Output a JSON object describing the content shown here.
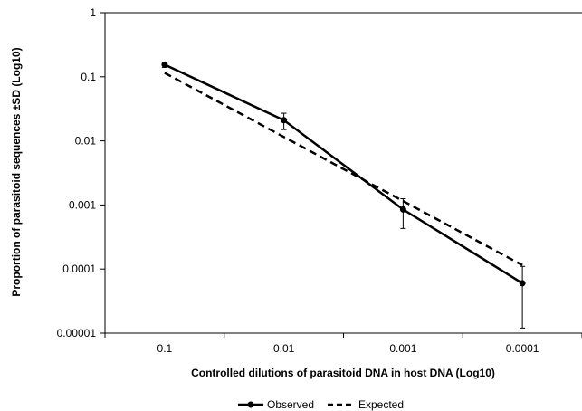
{
  "chart_data": {
    "type": "line",
    "title": "",
    "xlabel": "Controlled dilutions of parasitoid  DNA in host DNA (Log10)",
    "ylabel": "Proportion of parasitoid sequences ±SD (Log10)",
    "y_scale": "log",
    "ylim": [
      1e-05,
      1
    ],
    "grid": false,
    "legend_position": "bottom",
    "categories": [
      "0.1",
      "0.01",
      "0.001",
      "0.0001"
    ],
    "y_ticks": [
      "0.00001",
      "0.0001",
      "0.001",
      "0.01",
      "0.1",
      "1"
    ],
    "series": [
      {
        "name": "Observed",
        "style": "solid",
        "markers": true,
        "color": "#000000",
        "values": [
          0.155,
          0.021,
          0.00085,
          6e-05
        ],
        "error_low": [
          0.14,
          0.015,
          0.00043,
          1.2e-05
        ],
        "error_high": [
          0.17,
          0.027,
          0.00125,
          0.00011
        ]
      },
      {
        "name": "Expected",
        "style": "dashed",
        "markers": false,
        "color": "#000000",
        "values": [
          0.115,
          0.0115,
          0.00115,
          0.000115
        ]
      }
    ]
  }
}
